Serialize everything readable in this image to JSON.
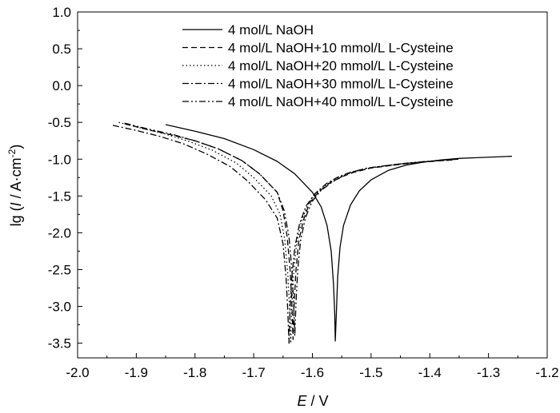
{
  "chart_data": {
    "type": "line",
    "xlabel": {
      "symbol": "E",
      "rest": " / V"
    },
    "ylabel": {
      "prefix": "lg (",
      "symbol": "I",
      "rest": " / A·cm",
      "superscript": "-2",
      "suffix": ")"
    },
    "xlim": [
      -2.0,
      -1.2
    ],
    "ylim": [
      -3.7,
      1.0
    ],
    "x_ticks": [
      -2.0,
      -1.9,
      -1.8,
      -1.7,
      -1.6,
      -1.5,
      -1.4,
      -1.3,
      -1.2
    ],
    "x_tick_labels": [
      "-2.0",
      "-1.9",
      "-1.8",
      "-1.7",
      "-1.6",
      "-1.5",
      "-1.4",
      "-1.3",
      "-1.2"
    ],
    "y_ticks": [
      1.0,
      0.5,
      0.0,
      -0.5,
      -1.0,
      -1.5,
      -2.0,
      -2.5,
      -3.0,
      -3.5
    ],
    "y_tick_labels": [
      "1.0",
      "0.5",
      "0.0",
      "-0.5",
      "-1.0",
      "-1.5",
      "-2.0",
      "-2.5",
      "-3.0",
      "-3.5"
    ],
    "legend_position": "top-right",
    "series": [
      {
        "name": "4 mol/L NaOH",
        "dash": "solid",
        "x": [
          -1.85,
          -1.8,
          -1.75,
          -1.7,
          -1.66,
          -1.63,
          -1.6,
          -1.585,
          -1.575,
          -1.568,
          -1.564,
          -1.562,
          -1.561,
          -1.559,
          -1.557,
          -1.553,
          -1.547,
          -1.535,
          -1.52,
          -1.5,
          -1.47,
          -1.44,
          -1.41,
          -1.38,
          -1.35,
          -1.32,
          -1.29,
          -1.26
        ],
        "y": [
          -0.53,
          -0.62,
          -0.72,
          -0.87,
          -1.03,
          -1.2,
          -1.45,
          -1.65,
          -1.9,
          -2.25,
          -2.7,
          -3.1,
          -3.47,
          -3.05,
          -2.6,
          -2.2,
          -1.9,
          -1.62,
          -1.43,
          -1.28,
          -1.15,
          -1.08,
          -1.04,
          -1.01,
          -0.99,
          -0.98,
          -0.97,
          -0.96
        ]
      },
      {
        "name": "4 mol/L NaOH+10 mmol/L L-Cysteine",
        "dash": "dashed",
        "x": [
          -1.92,
          -1.88,
          -1.84,
          -1.8,
          -1.76,
          -1.72,
          -1.69,
          -1.66,
          -1.65,
          -1.643,
          -1.638,
          -1.635,
          -1.633,
          -1.631,
          -1.628,
          -1.623,
          -1.615,
          -1.605,
          -1.59,
          -1.57,
          -1.55,
          -1.53,
          -1.5,
          -1.47,
          -1.44,
          -1.41,
          -1.38,
          -1.36
        ],
        "y": [
          -0.52,
          -0.6,
          -0.67,
          -0.75,
          -0.86,
          -1.02,
          -1.2,
          -1.45,
          -1.7,
          -2.05,
          -2.5,
          -2.95,
          -3.45,
          -2.95,
          -2.5,
          -2.1,
          -1.82,
          -1.6,
          -1.45,
          -1.32,
          -1.24,
          -1.18,
          -1.12,
          -1.09,
          -1.06,
          -1.04,
          -1.02,
          -1.01
        ]
      },
      {
        "name": "4 mol/L NaOH+20 mmol/L L-Cysteine",
        "dash": "dotted",
        "x": [
          -1.93,
          -1.89,
          -1.85,
          -1.81,
          -1.77,
          -1.73,
          -1.7,
          -1.67,
          -1.655,
          -1.647,
          -1.642,
          -1.639,
          -1.637,
          -1.635,
          -1.632,
          -1.627,
          -1.619,
          -1.608,
          -1.593,
          -1.573,
          -1.553,
          -1.533,
          -1.503,
          -1.473,
          -1.443,
          -1.413,
          -1.383,
          -1.36
        ],
        "y": [
          -0.5,
          -0.58,
          -0.66,
          -0.76,
          -0.88,
          -1.05,
          -1.25,
          -1.5,
          -1.75,
          -2.1,
          -2.55,
          -3.0,
          -3.5,
          -3.0,
          -2.55,
          -2.15,
          -1.85,
          -1.62,
          -1.46,
          -1.33,
          -1.24,
          -1.18,
          -1.12,
          -1.09,
          -1.06,
          -1.04,
          -1.02,
          -1.01
        ]
      },
      {
        "name": "4 mol/L NaOH+30 mmol/L L-Cysteine",
        "dash": "dash-dot",
        "x": [
          -1.94,
          -1.9,
          -1.86,
          -1.82,
          -1.78,
          -1.74,
          -1.71,
          -1.68,
          -1.66,
          -1.65,
          -1.645,
          -1.642,
          -1.64,
          -1.638,
          -1.635,
          -1.63,
          -1.622,
          -1.611,
          -1.596,
          -1.576,
          -1.556,
          -1.536,
          -1.506,
          -1.476,
          -1.446,
          -1.416,
          -1.386,
          -1.36
        ],
        "y": [
          -0.54,
          -0.61,
          -0.69,
          -0.79,
          -0.93,
          -1.1,
          -1.3,
          -1.55,
          -1.8,
          -2.15,
          -2.6,
          -3.05,
          -3.5,
          -3.05,
          -2.6,
          -2.2,
          -1.88,
          -1.64,
          -1.47,
          -1.33,
          -1.24,
          -1.18,
          -1.12,
          -1.09,
          -1.06,
          -1.04,
          -1.02,
          -1.01
        ]
      },
      {
        "name": "4 mol/L NaOH+40 mmol/L L-Cysteine",
        "dash": "dash-dot-dot",
        "x": [
          -1.92,
          -1.88,
          -1.84,
          -1.8,
          -1.76,
          -1.72,
          -1.69,
          -1.66,
          -1.648,
          -1.64,
          -1.635,
          -1.632,
          -1.63,
          -1.628,
          -1.625,
          -1.62,
          -1.612,
          -1.601,
          -1.586,
          -1.566,
          -1.546,
          -1.526,
          -1.496,
          -1.466,
          -1.436,
          -1.406,
          -1.376,
          -1.35
        ],
        "y": [
          -0.51,
          -0.59,
          -0.66,
          -0.75,
          -0.86,
          -1.02,
          -1.2,
          -1.45,
          -1.7,
          -2.05,
          -2.5,
          -2.95,
          -3.4,
          -2.95,
          -2.5,
          -2.1,
          -1.8,
          -1.58,
          -1.43,
          -1.31,
          -1.22,
          -1.16,
          -1.11,
          -1.08,
          -1.05,
          -1.03,
          -1.01,
          -1.0
        ]
      }
    ]
  }
}
